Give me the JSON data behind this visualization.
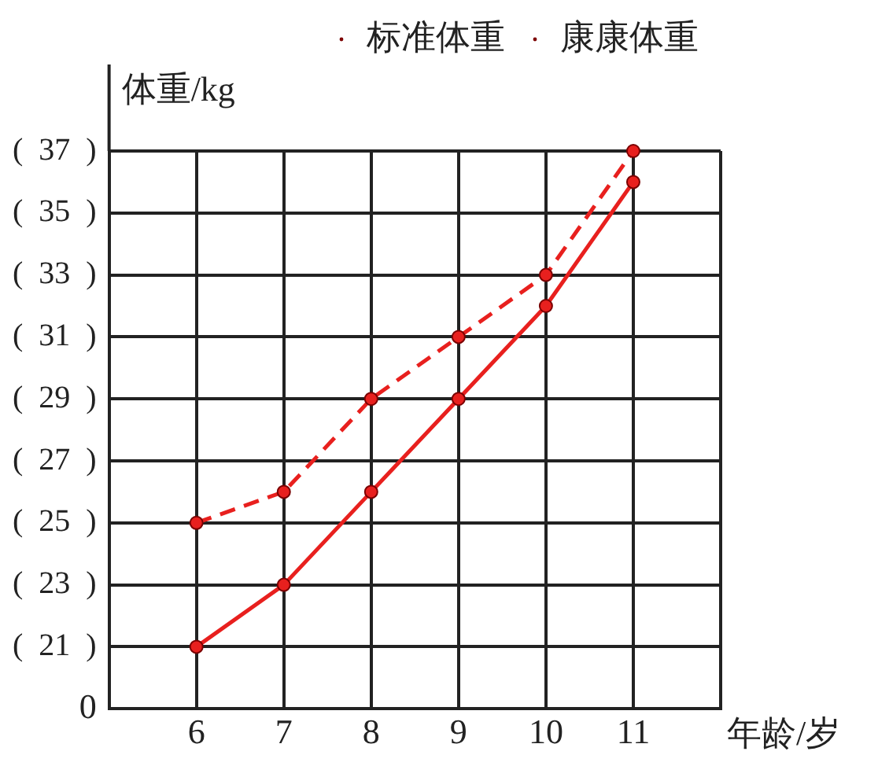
{
  "chart_data": {
    "type": "line",
    "xlabel": "年龄/岁",
    "ylabel": "体重/kg",
    "x": [
      6,
      7,
      8,
      9,
      10,
      11
    ],
    "series": [
      {
        "name": "标准体重",
        "color": "#e8201e",
        "values": [
          21,
          23,
          26,
          29,
          32,
          36
        ],
        "line_style": "solid"
      },
      {
        "name": "康康体重",
        "color": "#e8201e",
        "values": [
          25,
          26,
          29,
          31,
          33,
          37
        ],
        "line_style": "dashed"
      }
    ],
    "xlim": [
      5,
      12
    ],
    "xticks": [
      6,
      7,
      8,
      9,
      10,
      11,
      {
        "value": 12,
        "label": null
      }
    ],
    "ylim": [
      19,
      37
    ],
    "yticks": [
      {
        "value": 21,
        "label": "(  21  )"
      },
      {
        "value": 23,
        "label": "(  23  )"
      },
      {
        "value": 25,
        "label": "(  25  )"
      },
      {
        "value": 27,
        "label": "(  27  )"
      },
      {
        "value": 29,
        "label": "(  29  )"
      },
      {
        "value": 31,
        "label": "(  31  )"
      },
      {
        "value": 33,
        "label": "(  33  )"
      },
      {
        "value": 35,
        "label": "(  35  )"
      },
      {
        "value": 37,
        "label": "(  37  )"
      }
    ],
    "annotations": [
      "0"
    ],
    "grid": true,
    "legend": "top right",
    "marker": "circle"
  }
}
